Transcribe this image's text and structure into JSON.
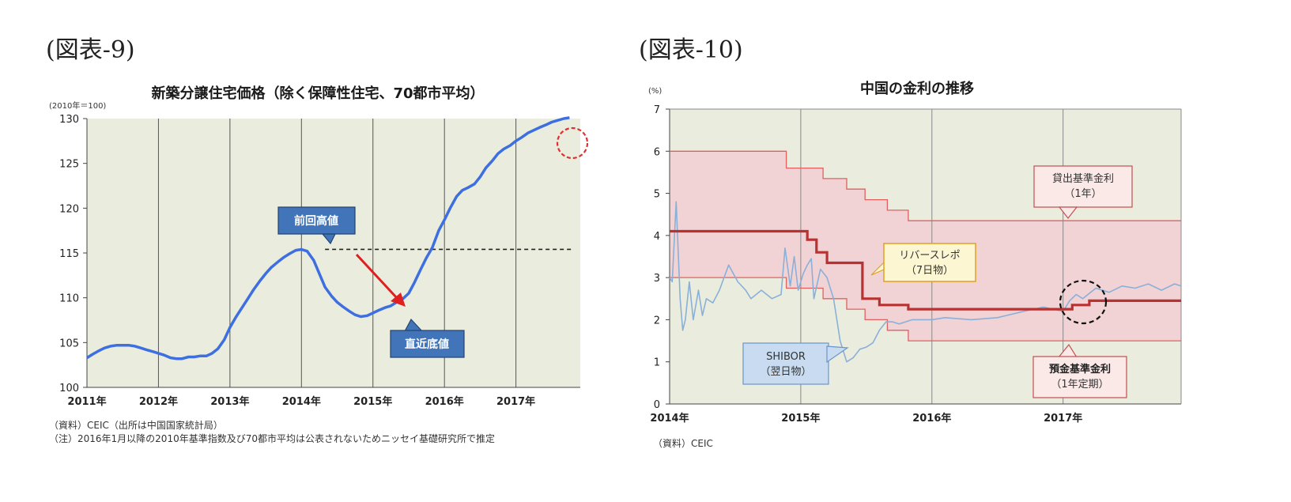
{
  "labels": {
    "fig1": "(図表-9)",
    "fig2": "(図表-10)"
  },
  "chart_data": [
    {
      "type": "line",
      "title": "新築分譲住宅価格（除く保障性住宅、70都市平均）",
      "ylabel": "(2010年＝100)",
      "xlabel": "",
      "ylim": [
        100,
        130
      ],
      "yticks": [
        "100",
        "105",
        "110",
        "115",
        "120",
        "125",
        "130"
      ],
      "xlim": [
        2011,
        2017.9
      ],
      "xticks": [
        {
          "value": 2011,
          "label": "2011年"
        },
        {
          "value": 2012,
          "label": "2012年"
        },
        {
          "value": 2013,
          "label": "2013年"
        },
        {
          "value": 2014,
          "label": "2014年"
        },
        {
          "value": 2015,
          "label": "2015年"
        },
        {
          "value": 2016,
          "label": "2016年"
        },
        {
          "value": 2017,
          "label": "2017年"
        }
      ],
      "grid": "vertical",
      "background": "#eaedde",
      "line_color": "#3d6fe0",
      "series": [
        {
          "x": [
            2011.0,
            2011.08,
            2011.17,
            2011.25,
            2011.33,
            2011.42,
            2011.5,
            2011.58,
            2011.67,
            2011.75,
            2011.83,
            2011.92,
            2012.0,
            2012.08,
            2012.17,
            2012.25,
            2012.33,
            2012.42,
            2012.5,
            2012.58,
            2012.67,
            2012.75,
            2012.83,
            2012.92,
            2013.0,
            2013.08,
            2013.17,
            2013.25,
            2013.33,
            2013.42,
            2013.5,
            2013.58,
            2013.67,
            2013.75,
            2013.83,
            2013.92,
            2014.0,
            2014.08,
            2014.17,
            2014.25,
            2014.33,
            2014.42,
            2014.5,
            2014.58,
            2014.67,
            2014.75,
            2014.83,
            2014.92,
            2015.0,
            2015.08,
            2015.17,
            2015.25,
            2015.33,
            2015.42,
            2015.5,
            2015.58,
            2015.67,
            2015.75,
            2015.83,
            2015.92,
            2016.0,
            2016.08,
            2016.17,
            2016.25,
            2016.33,
            2016.42,
            2016.5,
            2016.58,
            2016.67,
            2016.75,
            2016.83,
            2016.92,
            2017.0,
            2017.08,
            2017.17,
            2017.25,
            2017.33,
            2017.42,
            2017.5,
            2017.58,
            2017.67,
            2017.75
          ],
          "values": [
            103.3,
            103.7,
            104.1,
            104.4,
            104.6,
            104.7,
            104.7,
            104.7,
            104.6,
            104.4,
            104.2,
            104.0,
            103.8,
            103.6,
            103.3,
            103.2,
            103.2,
            103.4,
            103.4,
            103.5,
            103.5,
            103.8,
            104.3,
            105.3,
            106.7,
            107.8,
            108.9,
            109.9,
            110.9,
            111.9,
            112.7,
            113.4,
            114.0,
            114.5,
            114.9,
            115.3,
            115.4,
            115.2,
            114.2,
            112.7,
            111.2,
            110.2,
            109.5,
            109.0,
            108.5,
            108.1,
            107.9,
            108.0,
            108.3,
            108.6,
            108.9,
            109.1,
            109.5,
            109.9,
            110.5,
            111.7,
            113.2,
            114.5,
            115.6,
            117.5,
            118.7,
            120.0,
            121.3,
            122.0,
            122.3,
            122.7,
            123.5,
            124.5,
            125.3,
            126.1,
            126.6,
            127.0,
            127.5,
            127.9,
            128.4,
            128.7,
            129.0,
            129.3,
            129.6,
            129.8,
            130.0,
            130.1
          ]
        }
      ],
      "reference_line": {
        "value": 115.4,
        "from_x": 2014.33,
        "to_x": 2017.8,
        "style": "dashed"
      },
      "annotations": [
        "前回高値",
        "直近底値"
      ],
      "notes": [
        "（資料）CEIC（出所は中国国家統計局）",
        "（注）2016年1月以降の2010年基準指数及び70都市平均は公表されないためニッセイ基礎研究所で推定"
      ]
    },
    {
      "type": "line",
      "title": "中国の金利の推移",
      "ylabel": "(%)",
      "xlabel": "",
      "ylim": [
        0,
        7
      ],
      "yticks": [
        "0",
        "1",
        "2",
        "3",
        "4",
        "5",
        "6",
        "7"
      ],
      "xlim": [
        2014,
        2017.9
      ],
      "xticks": [
        {
          "value": 2014,
          "label": "2014年"
        },
        {
          "value": 2015,
          "label": "2015年"
        },
        {
          "value": 2016,
          "label": "2016年"
        },
        {
          "value": 2017,
          "label": "2017年"
        }
      ],
      "grid": "vertical",
      "background": "#eaedde",
      "band_color": "#f2d3d5",
      "series": [
        {
          "name": "貸出基準金利（1年）",
          "color": "#e06060",
          "step": true,
          "x": [
            2014.0,
            2014.89,
            2015.17,
            2015.35,
            2015.49,
            2015.66,
            2015.82,
            2017.9
          ],
          "values": [
            6.0,
            5.6,
            5.35,
            5.1,
            4.85,
            4.6,
            4.35,
            4.35
          ]
        },
        {
          "name": "預金基準金利（1年定期）",
          "color": "#e06060",
          "step": true,
          "x": [
            2014.0,
            2014.89,
            2015.17,
            2015.35,
            2015.49,
            2015.66,
            2015.82,
            2017.9
          ],
          "values": [
            3.0,
            2.75,
            2.5,
            2.25,
            2.0,
            1.75,
            1.5,
            1.5
          ]
        },
        {
          "name": "リバースレポ（7日物）",
          "color": "#b83232",
          "step": true,
          "x": [
            2014.0,
            2015.05,
            2015.12,
            2015.2,
            2015.3,
            2015.47,
            2015.6,
            2015.82,
            2017.07,
            2017.2,
            2017.9
          ],
          "values": [
            4.1,
            3.9,
            3.6,
            3.35,
            3.35,
            2.5,
            2.35,
            2.25,
            2.35,
            2.45,
            2.45
          ]
        },
        {
          "name": "SHIBOR（翌日物）",
          "color": "#8ab0d8",
          "step": false,
          "x": [
            2014.0,
            2014.02,
            2014.05,
            2014.08,
            2014.1,
            2014.12,
            2014.15,
            2014.18,
            2014.22,
            2014.25,
            2014.28,
            2014.33,
            2014.38,
            2014.45,
            2014.52,
            2014.58,
            2014.62,
            2014.7,
            2014.78,
            2014.85,
            2014.88,
            2014.92,
            2014.95,
            2014.98,
            2015.02,
            2015.05,
            2015.08,
            2015.1,
            2015.15,
            2015.2,
            2015.25,
            2015.3,
            2015.35,
            2015.4,
            2015.45,
            2015.5,
            2015.55,
            2015.6,
            2015.65,
            2015.7,
            2015.75,
            2015.85,
            2016.0,
            2016.1,
            2016.3,
            2016.5,
            2016.7,
            2016.85,
            2017.0,
            2017.05,
            2017.1,
            2017.15,
            2017.25,
            2017.35,
            2017.45,
            2017.55,
            2017.65,
            2017.75,
            2017.85,
            2017.9
          ],
          "values": [
            3.0,
            2.9,
            4.8,
            2.5,
            1.75,
            2.0,
            2.9,
            2.0,
            2.7,
            2.1,
            2.5,
            2.4,
            2.7,
            3.3,
            2.9,
            2.7,
            2.5,
            2.7,
            2.5,
            2.6,
            3.7,
            2.8,
            3.5,
            2.7,
            3.1,
            3.3,
            3.45,
            2.5,
            3.2,
            3.0,
            2.5,
            1.5,
            1.0,
            1.1,
            1.3,
            1.35,
            1.45,
            1.75,
            1.95,
            1.95,
            1.9,
            2.0,
            2.0,
            2.05,
            2.0,
            2.05,
            2.2,
            2.3,
            2.2,
            2.45,
            2.6,
            2.5,
            2.75,
            2.65,
            2.8,
            2.75,
            2.85,
            2.7,
            2.85,
            2.8
          ]
        }
      ],
      "annotations": [
        "貸出基準金利\n（1年）",
        "リバースレポ\n（7日物）",
        "SHIBOR\n（翌日物）",
        "預金基準金利\n（1年定期）"
      ],
      "notes": [
        "（資料）CEIC"
      ]
    }
  ]
}
